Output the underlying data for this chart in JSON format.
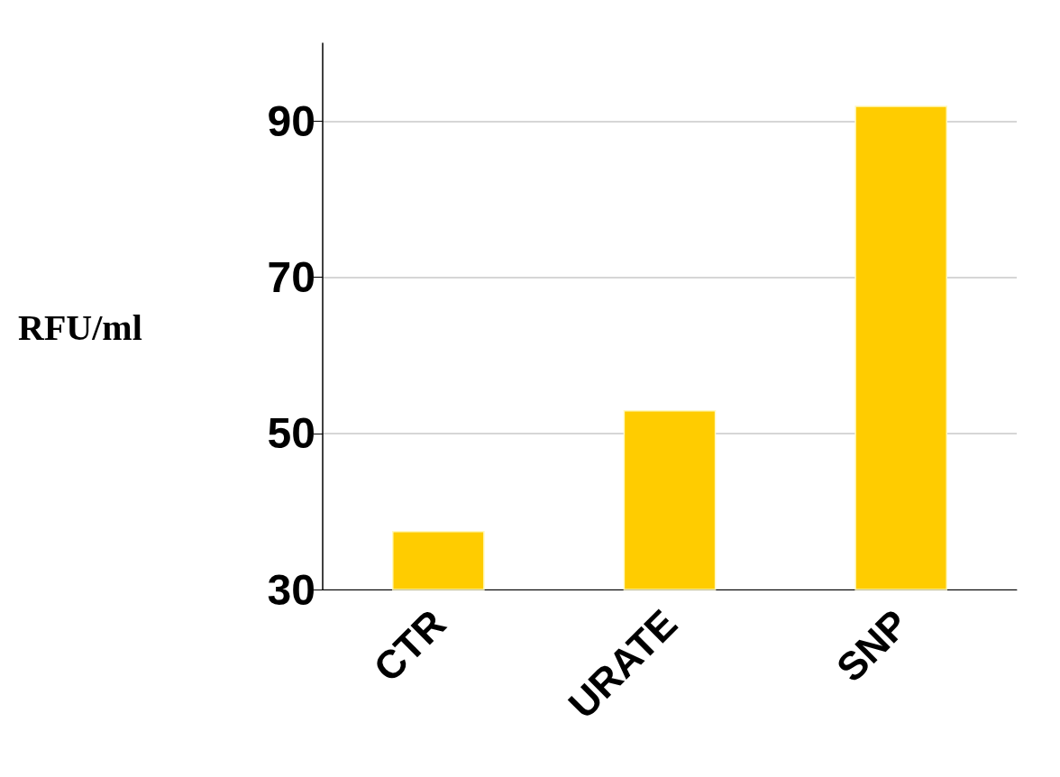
{
  "chart_data": {
    "type": "bar",
    "ylabel": "RFU/ml",
    "categories": [
      "CTR",
      "URATE",
      "SNP"
    ],
    "values": [
      37.5,
      53,
      92
    ],
    "color": "#ffcc00",
    "ylim": [
      30,
      100
    ],
    "yticks": [
      30,
      50,
      70,
      90
    ],
    "grid": "y"
  }
}
